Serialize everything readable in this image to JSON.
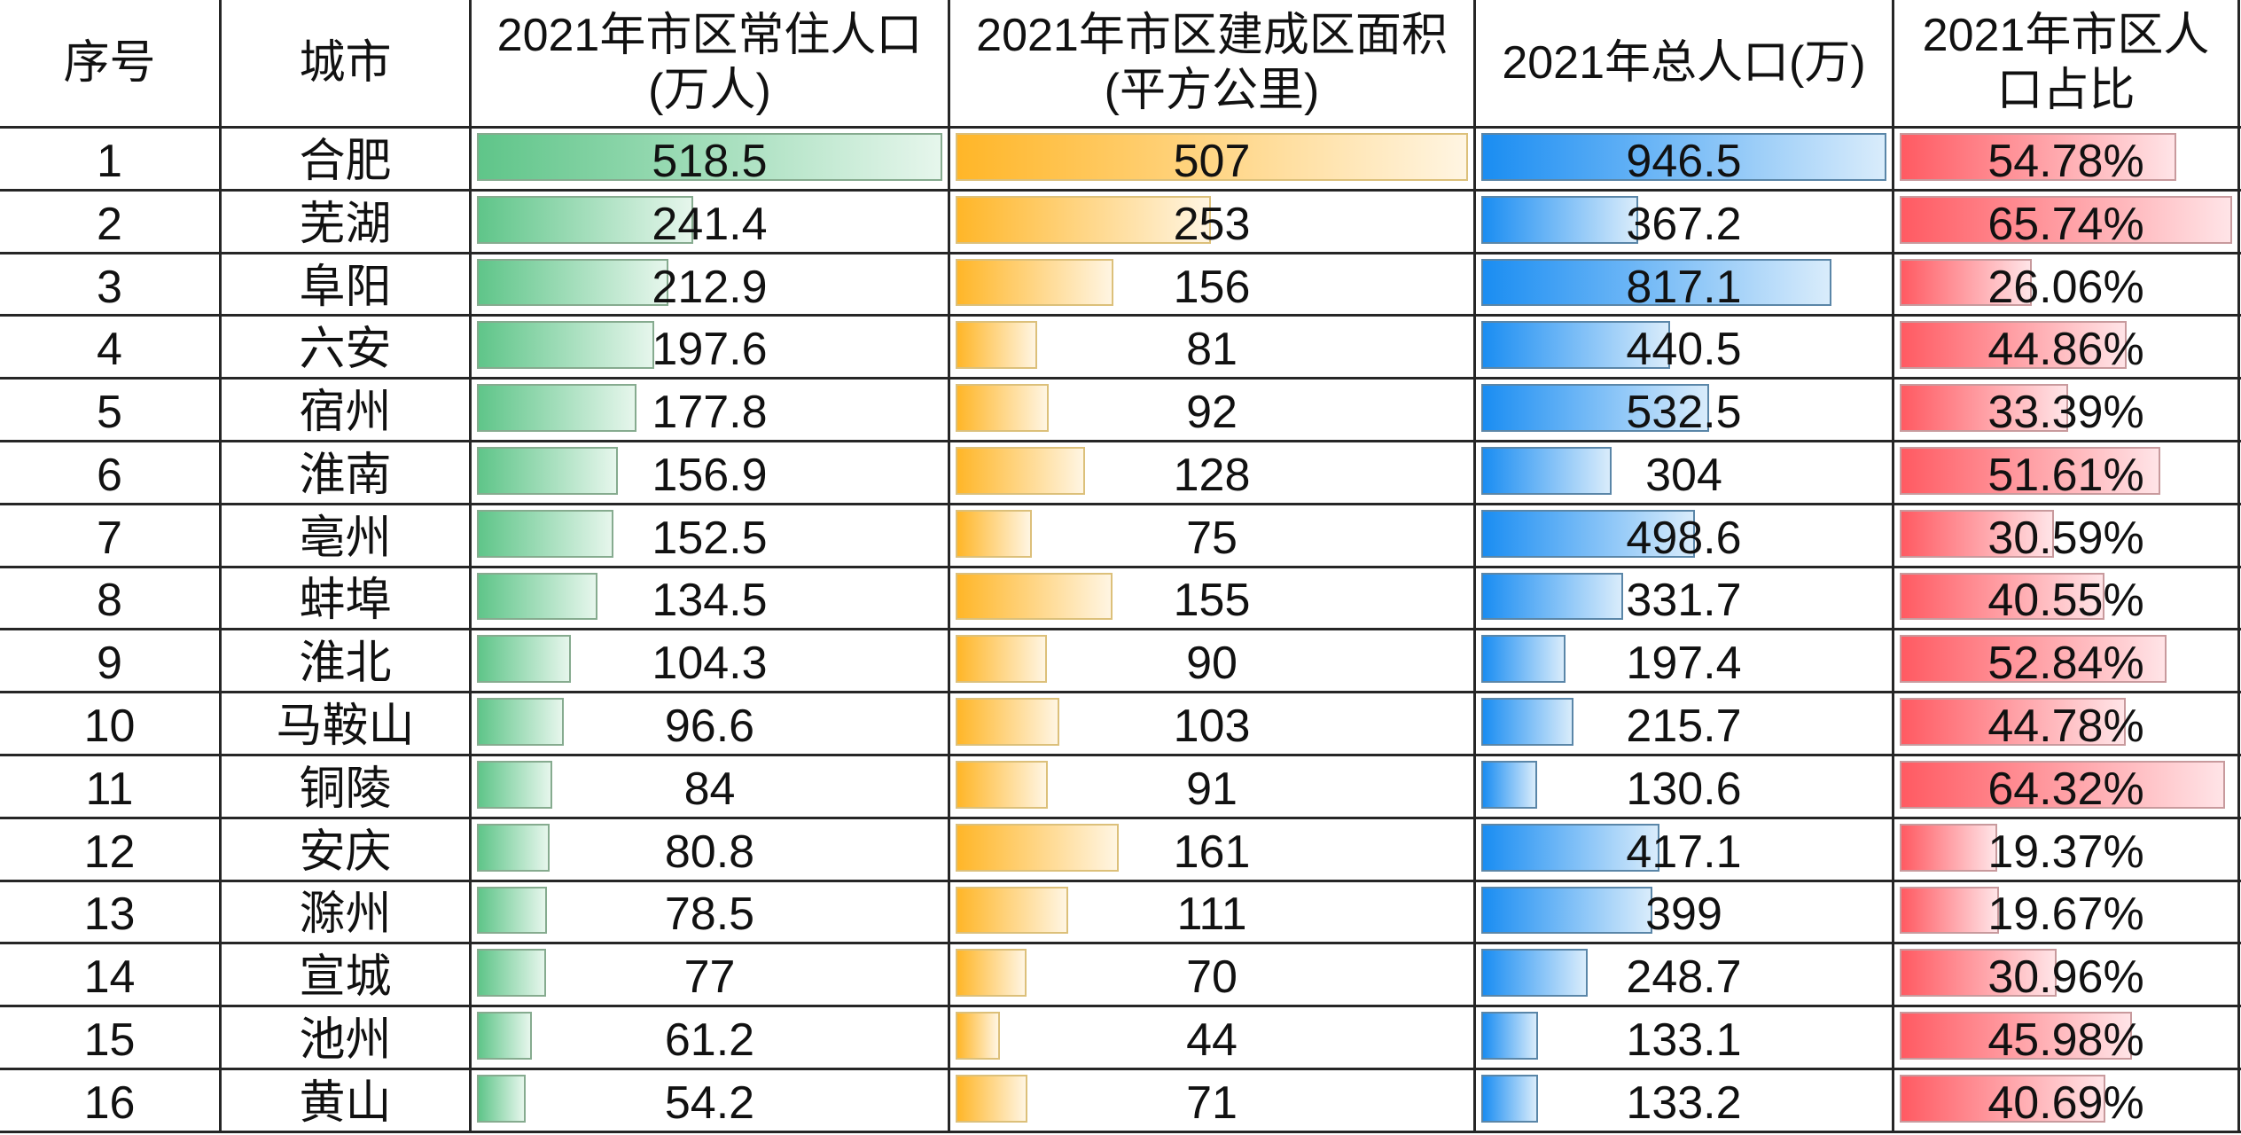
{
  "table": {
    "headers": [
      "序号",
      "城市",
      "2021年市区常住人口\n(万人)",
      "2021年市区建成区面积\n(平方公里)",
      "2021年总人口(万)",
      "2021年市区人\n口占比"
    ],
    "rows": [
      {
        "index": "1",
        "city": "合肥",
        "urban_pop": "518.5",
        "built_area": "507",
        "total_pop": "946.5",
        "urban_ratio": "54.78%"
      },
      {
        "index": "2",
        "city": "芜湖",
        "urban_pop": "241.4",
        "built_area": "253",
        "total_pop": "367.2",
        "urban_ratio": "65.74%"
      },
      {
        "index": "3",
        "city": "阜阳",
        "urban_pop": "212.9",
        "built_area": "156",
        "total_pop": "817.1",
        "urban_ratio": "26.06%"
      },
      {
        "index": "4",
        "city": "六安",
        "urban_pop": "197.6",
        "built_area": "81",
        "total_pop": "440.5",
        "urban_ratio": "44.86%"
      },
      {
        "index": "5",
        "city": "宿州",
        "urban_pop": "177.8",
        "built_area": "92",
        "total_pop": "532.5",
        "urban_ratio": "33.39%"
      },
      {
        "index": "6",
        "city": "淮南",
        "urban_pop": "156.9",
        "built_area": "128",
        "total_pop": "304",
        "urban_ratio": "51.61%"
      },
      {
        "index": "7",
        "city": "亳州",
        "urban_pop": "152.5",
        "built_area": "75",
        "total_pop": "498.6",
        "urban_ratio": "30.59%"
      },
      {
        "index": "8",
        "city": "蚌埠",
        "urban_pop": "134.5",
        "built_area": "155",
        "total_pop": "331.7",
        "urban_ratio": "40.55%"
      },
      {
        "index": "9",
        "city": "淮北",
        "urban_pop": "104.3",
        "built_area": "90",
        "total_pop": "197.4",
        "urban_ratio": "52.84%"
      },
      {
        "index": "10",
        "city": "马鞍山",
        "urban_pop": "96.6",
        "built_area": "103",
        "total_pop": "215.7",
        "urban_ratio": "44.78%"
      },
      {
        "index": "11",
        "city": "铜陵",
        "urban_pop": "84",
        "built_area": "91",
        "total_pop": "130.6",
        "urban_ratio": "64.32%"
      },
      {
        "index": "12",
        "city": "安庆",
        "urban_pop": "80.8",
        "built_area": "161",
        "total_pop": "417.1",
        "urban_ratio": "19.37%"
      },
      {
        "index": "13",
        "city": "滁州",
        "urban_pop": "78.5",
        "built_area": "111",
        "total_pop": "399",
        "urban_ratio": "19.67%"
      },
      {
        "index": "14",
        "city": "宣城",
        "urban_pop": "77",
        "built_area": "70",
        "total_pop": "248.7",
        "urban_ratio": "30.96%"
      },
      {
        "index": "15",
        "city": "池州",
        "urban_pop": "61.2",
        "built_area": "44",
        "total_pop": "133.1",
        "urban_ratio": "45.98%"
      },
      {
        "index": "16",
        "city": "黄山",
        "urban_pop": "54.2",
        "built_area": "71",
        "total_pop": "133.2",
        "urban_ratio": "40.69%"
      }
    ]
  },
  "chart_data": {
    "type": "table",
    "title": "",
    "columns": [
      "序号",
      "城市",
      "2021年市区常住人口(万人)",
      "2021年市区建成区面积(平方公里)",
      "2021年总人口(万)",
      "2021年市区人口占比"
    ],
    "categories": [
      "合肥",
      "芜湖",
      "阜阳",
      "六安",
      "宿州",
      "淮南",
      "亳州",
      "蚌埠",
      "淮北",
      "马鞍山",
      "铜陵",
      "安庆",
      "滁州",
      "宣城",
      "池州",
      "黄山"
    ],
    "series": [
      {
        "name": "2021年市区常住人口(万人)",
        "values": [
          518.5,
          241.4,
          212.9,
          197.6,
          177.8,
          156.9,
          152.5,
          134.5,
          104.3,
          96.6,
          84,
          80.8,
          78.5,
          77,
          61.2,
          54.2
        ],
        "color": "#5fc589",
        "color_end": "#e6f6ec",
        "border": "#86ab8f"
      },
      {
        "name": "2021年市区建成区面积(平方公里)",
        "values": [
          507,
          253,
          156,
          81,
          92,
          128,
          75,
          155,
          90,
          103,
          91,
          161,
          111,
          70,
          44,
          71
        ],
        "color": "#ffb628",
        "color_end": "#fff5e2",
        "border": "#dcc07a"
      },
      {
        "name": "2021年总人口(万)",
        "values": [
          946.5,
          367.2,
          817.1,
          440.5,
          532.5,
          304,
          498.6,
          331.7,
          197.4,
          215.7,
          130.6,
          417.1,
          399,
          248.7,
          133.1,
          133.2
        ],
        "color": "#1a8df2",
        "color_end": "#d9ecfb",
        "border": "#5a86a8"
      },
      {
        "name": "2021年市区人口占比",
        "values": [
          54.78,
          65.74,
          26.06,
          44.86,
          33.39,
          51.61,
          30.59,
          40.55,
          52.84,
          44.78,
          64.32,
          19.37,
          19.67,
          30.96,
          45.98,
          40.69
        ],
        "unit": "%",
        "color": "#ff5a62",
        "color_end": "#ffe4e7",
        "border": "#c89a9d"
      }
    ],
    "grid": true,
    "legend": "none",
    "bar_style": "gradient data bars, min 0, max = column max"
  }
}
